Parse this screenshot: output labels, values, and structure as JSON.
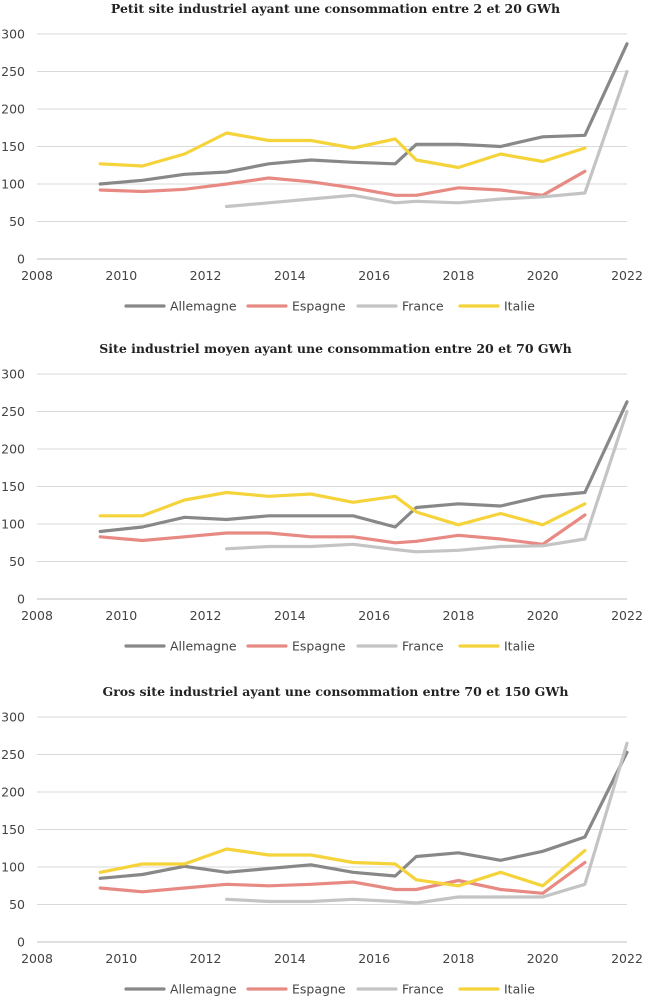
{
  "colors": {
    "Allemagne": "#888888",
    "Espagne": "#e88a84",
    "France": "#c4c4c4",
    "Italie": "#f5d33a"
  },
  "chart_data": [
    {
      "type": "line",
      "title": "Petit site industriel ayant une consommation entre 2 et 20 GWh",
      "xlim": [
        2008,
        2022
      ],
      "ylim": [
        0,
        300
      ],
      "xticks": [
        "2008",
        "2010",
        "2012",
        "2014",
        "2016",
        "2018",
        "2020",
        "2022"
      ],
      "yticks": [
        "0",
        "50",
        "100",
        "150",
        "200",
        "250",
        "300"
      ],
      "legend_position": "bottom",
      "series": [
        {
          "name": "Allemagne",
          "x": [
            2009.5,
            2010.5,
            2011.5,
            2012.5,
            2013.5,
            2014.5,
            2015.5,
            2016.5,
            2017,
            2018,
            2019,
            2020,
            2021,
            2022
          ],
          "y": [
            100,
            105,
            113,
            116,
            127,
            132,
            129,
            127,
            153,
            153,
            150,
            163,
            165,
            287
          ]
        },
        {
          "name": "Espagne",
          "x": [
            2009.5,
            2010.5,
            2011.5,
            2012.5,
            2013.5,
            2014.5,
            2015.5,
            2016.5,
            2017,
            2018,
            2019,
            2020,
            2021
          ],
          "y": [
            92,
            90,
            93,
            100,
            108,
            103,
            95,
            85,
            85,
            95,
            92,
            85,
            117
          ]
        },
        {
          "name": "France",
          "x": [
            2012.5,
            2013.5,
            2014.5,
            2015.5,
            2016.5,
            2017,
            2018,
            2019,
            2020,
            2021,
            2022
          ],
          "y": [
            70,
            75,
            80,
            85,
            75,
            77,
            75,
            80,
            83,
            88,
            250
          ]
        },
        {
          "name": "Italie",
          "x": [
            2009.5,
            2010.5,
            2011.5,
            2012.5,
            2013.5,
            2014.5,
            2015.5,
            2016.5,
            2017,
            2018,
            2019,
            2020,
            2021
          ],
          "y": [
            127,
            124,
            140,
            168,
            158,
            158,
            148,
            160,
            132,
            122,
            140,
            130,
            148
          ]
        }
      ]
    },
    {
      "type": "line",
      "title": "Site industriel moyen ayant une consommation entre 20 et 70 GWh",
      "xlim": [
        2008,
        2022
      ],
      "ylim": [
        0,
        300
      ],
      "xticks": [
        "2008",
        "2010",
        "2012",
        "2014",
        "2016",
        "2018",
        "2020",
        "2022"
      ],
      "yticks": [
        "0",
        "50",
        "100",
        "150",
        "200",
        "250",
        "300"
      ],
      "legend_position": "bottom",
      "series": [
        {
          "name": "Allemagne",
          "x": [
            2009.5,
            2010.5,
            2011.5,
            2012.5,
            2013.5,
            2014.5,
            2015.5,
            2016.5,
            2017,
            2018,
            2019,
            2020,
            2021,
            2022
          ],
          "y": [
            90,
            96,
            109,
            106,
            111,
            111,
            111,
            96,
            122,
            127,
            124,
            137,
            142,
            263
          ]
        },
        {
          "name": "Espagne",
          "x": [
            2009.5,
            2010.5,
            2011.5,
            2012.5,
            2013.5,
            2014.5,
            2015.5,
            2016.5,
            2017,
            2018,
            2019,
            2020,
            2021
          ],
          "y": [
            83,
            78,
            83,
            88,
            88,
            83,
            83,
            75,
            77,
            85,
            80,
            73,
            112
          ]
        },
        {
          "name": "France",
          "x": [
            2012.5,
            2013.5,
            2014.5,
            2015.5,
            2016.5,
            2017,
            2018,
            2019,
            2020,
            2021,
            2022
          ],
          "y": [
            67,
            70,
            70,
            73,
            66,
            63,
            65,
            70,
            71,
            80,
            250
          ]
        },
        {
          "name": "Italie",
          "x": [
            2009.5,
            2010.5,
            2011.5,
            2012.5,
            2013.5,
            2014.5,
            2015.5,
            2016.5,
            2017,
            2018,
            2019,
            2020,
            2021
          ],
          "y": [
            111,
            111,
            132,
            142,
            137,
            140,
            129,
            137,
            116,
            99,
            114,
            99,
            127
          ]
        }
      ]
    },
    {
      "type": "line",
      "title": "Gros site industriel ayant une consommation entre 70 et 150 GWh",
      "xlim": [
        2008,
        2022
      ],
      "ylim": [
        0,
        300
      ],
      "xticks": [
        "2008",
        "2010",
        "2012",
        "2014",
        "2016",
        "2018",
        "2020",
        "2022"
      ],
      "yticks": [
        "0",
        "50",
        "100",
        "150",
        "200",
        "250",
        "300"
      ],
      "legend_position": "bottom",
      "series": [
        {
          "name": "Allemagne",
          "x": [
            2009.5,
            2010.5,
            2011.5,
            2012.5,
            2013.5,
            2014.5,
            2015.5,
            2016.5,
            2017,
            2018,
            2019,
            2020,
            2021,
            2022
          ],
          "y": [
            85,
            90,
            101,
            93,
            98,
            103,
            93,
            88,
            114,
            119,
            109,
            121,
            140,
            253
          ]
        },
        {
          "name": "Espagne",
          "x": [
            2009.5,
            2010.5,
            2011.5,
            2012.5,
            2013.5,
            2014.5,
            2015.5,
            2016.5,
            2017,
            2018,
            2019,
            2020,
            2021
          ],
          "y": [
            72,
            67,
            72,
            77,
            75,
            77,
            80,
            70,
            70,
            82,
            70,
            65,
            106
          ]
        },
        {
          "name": "France",
          "x": [
            2012.5,
            2013.5,
            2014.5,
            2015.5,
            2016.5,
            2017,
            2018,
            2019,
            2020,
            2021,
            2022
          ],
          "y": [
            57,
            54,
            54,
            57,
            54,
            52,
            60,
            60,
            60,
            77,
            265
          ]
        },
        {
          "name": "Italie",
          "x": [
            2009.5,
            2010.5,
            2011.5,
            2012.5,
            2013.5,
            2014.5,
            2015.5,
            2016.5,
            2017,
            2018,
            2019,
            2020,
            2021
          ],
          "y": [
            93,
            104,
            104,
            124,
            116,
            116,
            106,
            104,
            83,
            75,
            93,
            75,
            122
          ]
        }
      ]
    }
  ]
}
